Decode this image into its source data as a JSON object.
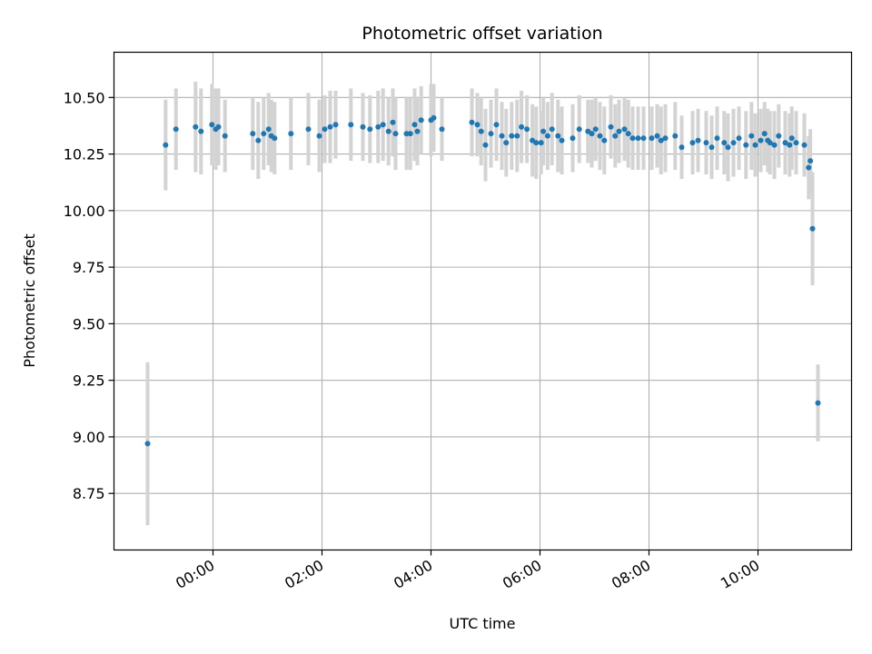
{
  "chart_data": {
    "type": "scatter",
    "title": "Photometric offset variation",
    "xlabel": "UTC time",
    "ylabel": "Photometric offset",
    "xlim": [
      -1.8167,
      11.7167
    ],
    "ylim": [
      8.5,
      10.7
    ],
    "x_ticks": [
      {
        "value": 0,
        "label": "00:00"
      },
      {
        "value": 2,
        "label": "02:00"
      },
      {
        "value": 4,
        "label": "04:00"
      },
      {
        "value": 6,
        "label": "06:00"
      },
      {
        "value": 8,
        "label": "08:00"
      },
      {
        "value": 10,
        "label": "10:00"
      }
    ],
    "y_ticks": [
      {
        "value": 8.75,
        "label": "8.75"
      },
      {
        "value": 9.0,
        "label": "9.00"
      },
      {
        "value": 9.25,
        "label": "9.25"
      },
      {
        "value": 9.5,
        "label": "9.50"
      },
      {
        "value": 9.75,
        "label": "9.75"
      },
      {
        "value": 10.0,
        "label": "10.00"
      },
      {
        "value": 10.25,
        "label": "10.25"
      },
      {
        "value": 10.5,
        "label": "10.50"
      }
    ],
    "grid": true,
    "colors": {
      "point": "#1f77b4",
      "errorbar": "#d3d3d3",
      "grid": "#b0b0b0"
    },
    "series": [
      {
        "name": "offset",
        "points": [
          [
            -1.2,
            8.97,
            0.36
          ],
          [
            -0.87,
            10.29,
            0.2
          ],
          [
            -0.68,
            10.36,
            0.18
          ],
          [
            -0.32,
            10.37,
            0.2
          ],
          [
            -0.22,
            10.35,
            0.19
          ],
          [
            -0.02,
            10.38,
            0.18
          ],
          [
            0.05,
            10.36,
            0.18
          ],
          [
            0.1,
            10.37,
            0.17
          ],
          [
            0.22,
            10.33,
            0.16
          ],
          [
            0.73,
            10.34,
            0.16
          ],
          [
            0.83,
            10.31,
            0.17
          ],
          [
            0.93,
            10.34,
            0.16
          ],
          [
            1.02,
            10.36,
            0.16
          ],
          [
            1.07,
            10.33,
            0.16
          ],
          [
            1.13,
            10.32,
            0.16
          ],
          [
            1.43,
            10.34,
            0.16
          ],
          [
            1.75,
            10.36,
            0.16
          ],
          [
            1.95,
            10.33,
            0.16
          ],
          [
            2.05,
            10.36,
            0.15
          ],
          [
            2.15,
            10.37,
            0.16
          ],
          [
            2.25,
            10.38,
            0.15
          ],
          [
            2.53,
            10.38,
            0.16
          ],
          [
            2.75,
            10.37,
            0.15
          ],
          [
            2.88,
            10.36,
            0.15
          ],
          [
            3.03,
            10.37,
            0.16
          ],
          [
            3.12,
            10.38,
            0.16
          ],
          [
            3.22,
            10.35,
            0.15
          ],
          [
            3.3,
            10.39,
            0.15
          ],
          [
            3.35,
            10.34,
            0.16
          ],
          [
            3.55,
            10.34,
            0.16
          ],
          [
            3.62,
            10.34,
            0.16
          ],
          [
            3.7,
            10.38,
            0.16
          ],
          [
            3.75,
            10.35,
            0.15
          ],
          [
            3.82,
            10.4,
            0.15
          ],
          [
            4.0,
            10.4,
            0.16
          ],
          [
            4.05,
            10.41,
            0.15
          ],
          [
            4.2,
            10.36,
            0.14
          ],
          [
            4.75,
            10.39,
            0.15
          ],
          [
            4.85,
            10.38,
            0.14
          ],
          [
            4.92,
            10.35,
            0.15
          ],
          [
            5.0,
            10.29,
            0.16
          ],
          [
            5.1,
            10.34,
            0.15
          ],
          [
            5.2,
            10.38,
            0.16
          ],
          [
            5.3,
            10.33,
            0.15
          ],
          [
            5.38,
            10.3,
            0.15
          ],
          [
            5.48,
            10.33,
            0.15
          ],
          [
            5.58,
            10.33,
            0.16
          ],
          [
            5.66,
            10.37,
            0.16
          ],
          [
            5.76,
            10.36,
            0.15
          ],
          [
            5.86,
            10.31,
            0.16
          ],
          [
            5.93,
            10.3,
            0.16
          ],
          [
            6.02,
            10.3,
            0.14
          ],
          [
            6.06,
            10.35,
            0.15
          ],
          [
            6.14,
            10.33,
            0.15
          ],
          [
            6.22,
            10.36,
            0.16
          ],
          [
            6.33,
            10.33,
            0.16
          ],
          [
            6.4,
            10.31,
            0.15
          ],
          [
            6.6,
            10.32,
            0.15
          ],
          [
            6.72,
            10.36,
            0.15
          ],
          [
            6.88,
            10.35,
            0.14
          ],
          [
            6.95,
            10.34,
            0.15
          ],
          [
            7.02,
            10.36,
            0.14
          ],
          [
            7.1,
            10.33,
            0.15
          ],
          [
            7.18,
            10.31,
            0.15
          ],
          [
            7.3,
            10.37,
            0.14
          ],
          [
            7.38,
            10.33,
            0.14
          ],
          [
            7.45,
            10.35,
            0.14
          ],
          [
            7.55,
            10.36,
            0.14
          ],
          [
            7.62,
            10.34,
            0.15
          ],
          [
            7.7,
            10.32,
            0.14
          ],
          [
            7.8,
            10.32,
            0.14
          ],
          [
            7.9,
            10.32,
            0.14
          ],
          [
            8.05,
            10.32,
            0.14
          ],
          [
            8.15,
            10.33,
            0.14
          ],
          [
            8.22,
            10.31,
            0.15
          ],
          [
            8.3,
            10.32,
            0.15
          ],
          [
            8.48,
            10.33,
            0.15
          ],
          [
            8.6,
            10.28,
            0.14
          ],
          [
            8.8,
            10.3,
            0.14
          ],
          [
            8.9,
            10.31,
            0.14
          ],
          [
            9.05,
            10.3,
            0.14
          ],
          [
            9.15,
            10.28,
            0.14
          ],
          [
            9.25,
            10.32,
            0.14
          ],
          [
            9.38,
            10.3,
            0.14
          ],
          [
            9.45,
            10.28,
            0.15
          ],
          [
            9.55,
            10.3,
            0.15
          ],
          [
            9.65,
            10.32,
            0.14
          ],
          [
            9.78,
            10.29,
            0.15
          ],
          [
            9.88,
            10.33,
            0.15
          ],
          [
            9.95,
            10.29,
            0.14
          ],
          [
            10.05,
            10.31,
            0.14
          ],
          [
            10.12,
            10.34,
            0.14
          ],
          [
            10.18,
            10.31,
            0.14
          ],
          [
            10.22,
            10.3,
            0.14
          ],
          [
            10.3,
            10.29,
            0.15
          ],
          [
            10.38,
            10.33,
            0.14
          ],
          [
            10.5,
            10.3,
            0.14
          ],
          [
            10.58,
            10.29,
            0.14
          ],
          [
            10.62,
            10.32,
            0.14
          ],
          [
            10.7,
            10.3,
            0.14
          ],
          [
            10.85,
            10.29,
            0.14
          ],
          [
            10.93,
            10.19,
            0.14
          ],
          [
            10.96,
            10.22,
            0.14
          ],
          [
            11.0,
            9.92,
            0.25
          ],
          [
            11.1,
            9.15,
            0.17
          ]
        ]
      }
    ]
  }
}
